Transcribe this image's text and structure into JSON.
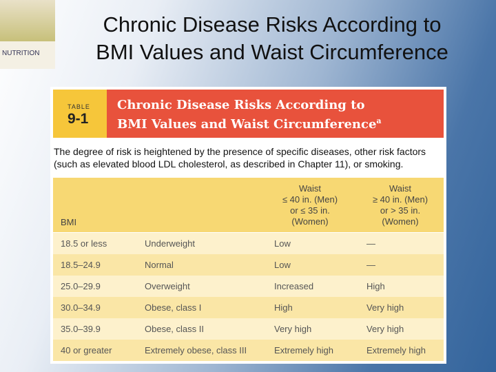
{
  "cover": {
    "title": "NUTRITION"
  },
  "slide_title": [
    "Chronic Disease Risks According to",
    "BMI Values and Waist Circumference"
  ],
  "table": {
    "label": "TABLE",
    "number": "9-1",
    "title": [
      "Chronic Disease Risks According to",
      "BMI Values and Waist Circumference"
    ],
    "title_note_mark": "a",
    "note": [
      "The degree of risk is heightened by the presence of specific diseases, other risk factors",
      "(such as elevated blood LDL cholesterol, as described in Chapter 11), or smoking."
    ],
    "headers": {
      "bmi": "BMI",
      "waist1": [
        "Waist",
        "≤ 40 in. (Men)",
        "or ≤ 35 in.",
        "(Women)"
      ],
      "waist2": [
        "Waist",
        "≥ 40 in. (Men)",
        "or > 35 in.",
        "(Women)"
      ]
    },
    "rows": [
      [
        "18.5 or less",
        "Underweight",
        "Low",
        "—"
      ],
      [
        "18.5–24.9",
        "Normal",
        "Low",
        "—"
      ],
      [
        "25.0–29.9",
        "Overweight",
        "Increased",
        "High"
      ],
      [
        "30.0–34.9",
        "Obese, class I",
        "High",
        "Very high"
      ],
      [
        "35.0–39.9",
        "Obese, class II",
        "Very high",
        "Very high"
      ],
      [
        "40 or greater",
        "Extremely obese, class III",
        "Extremely high",
        "Extremely high"
      ]
    ]
  }
}
